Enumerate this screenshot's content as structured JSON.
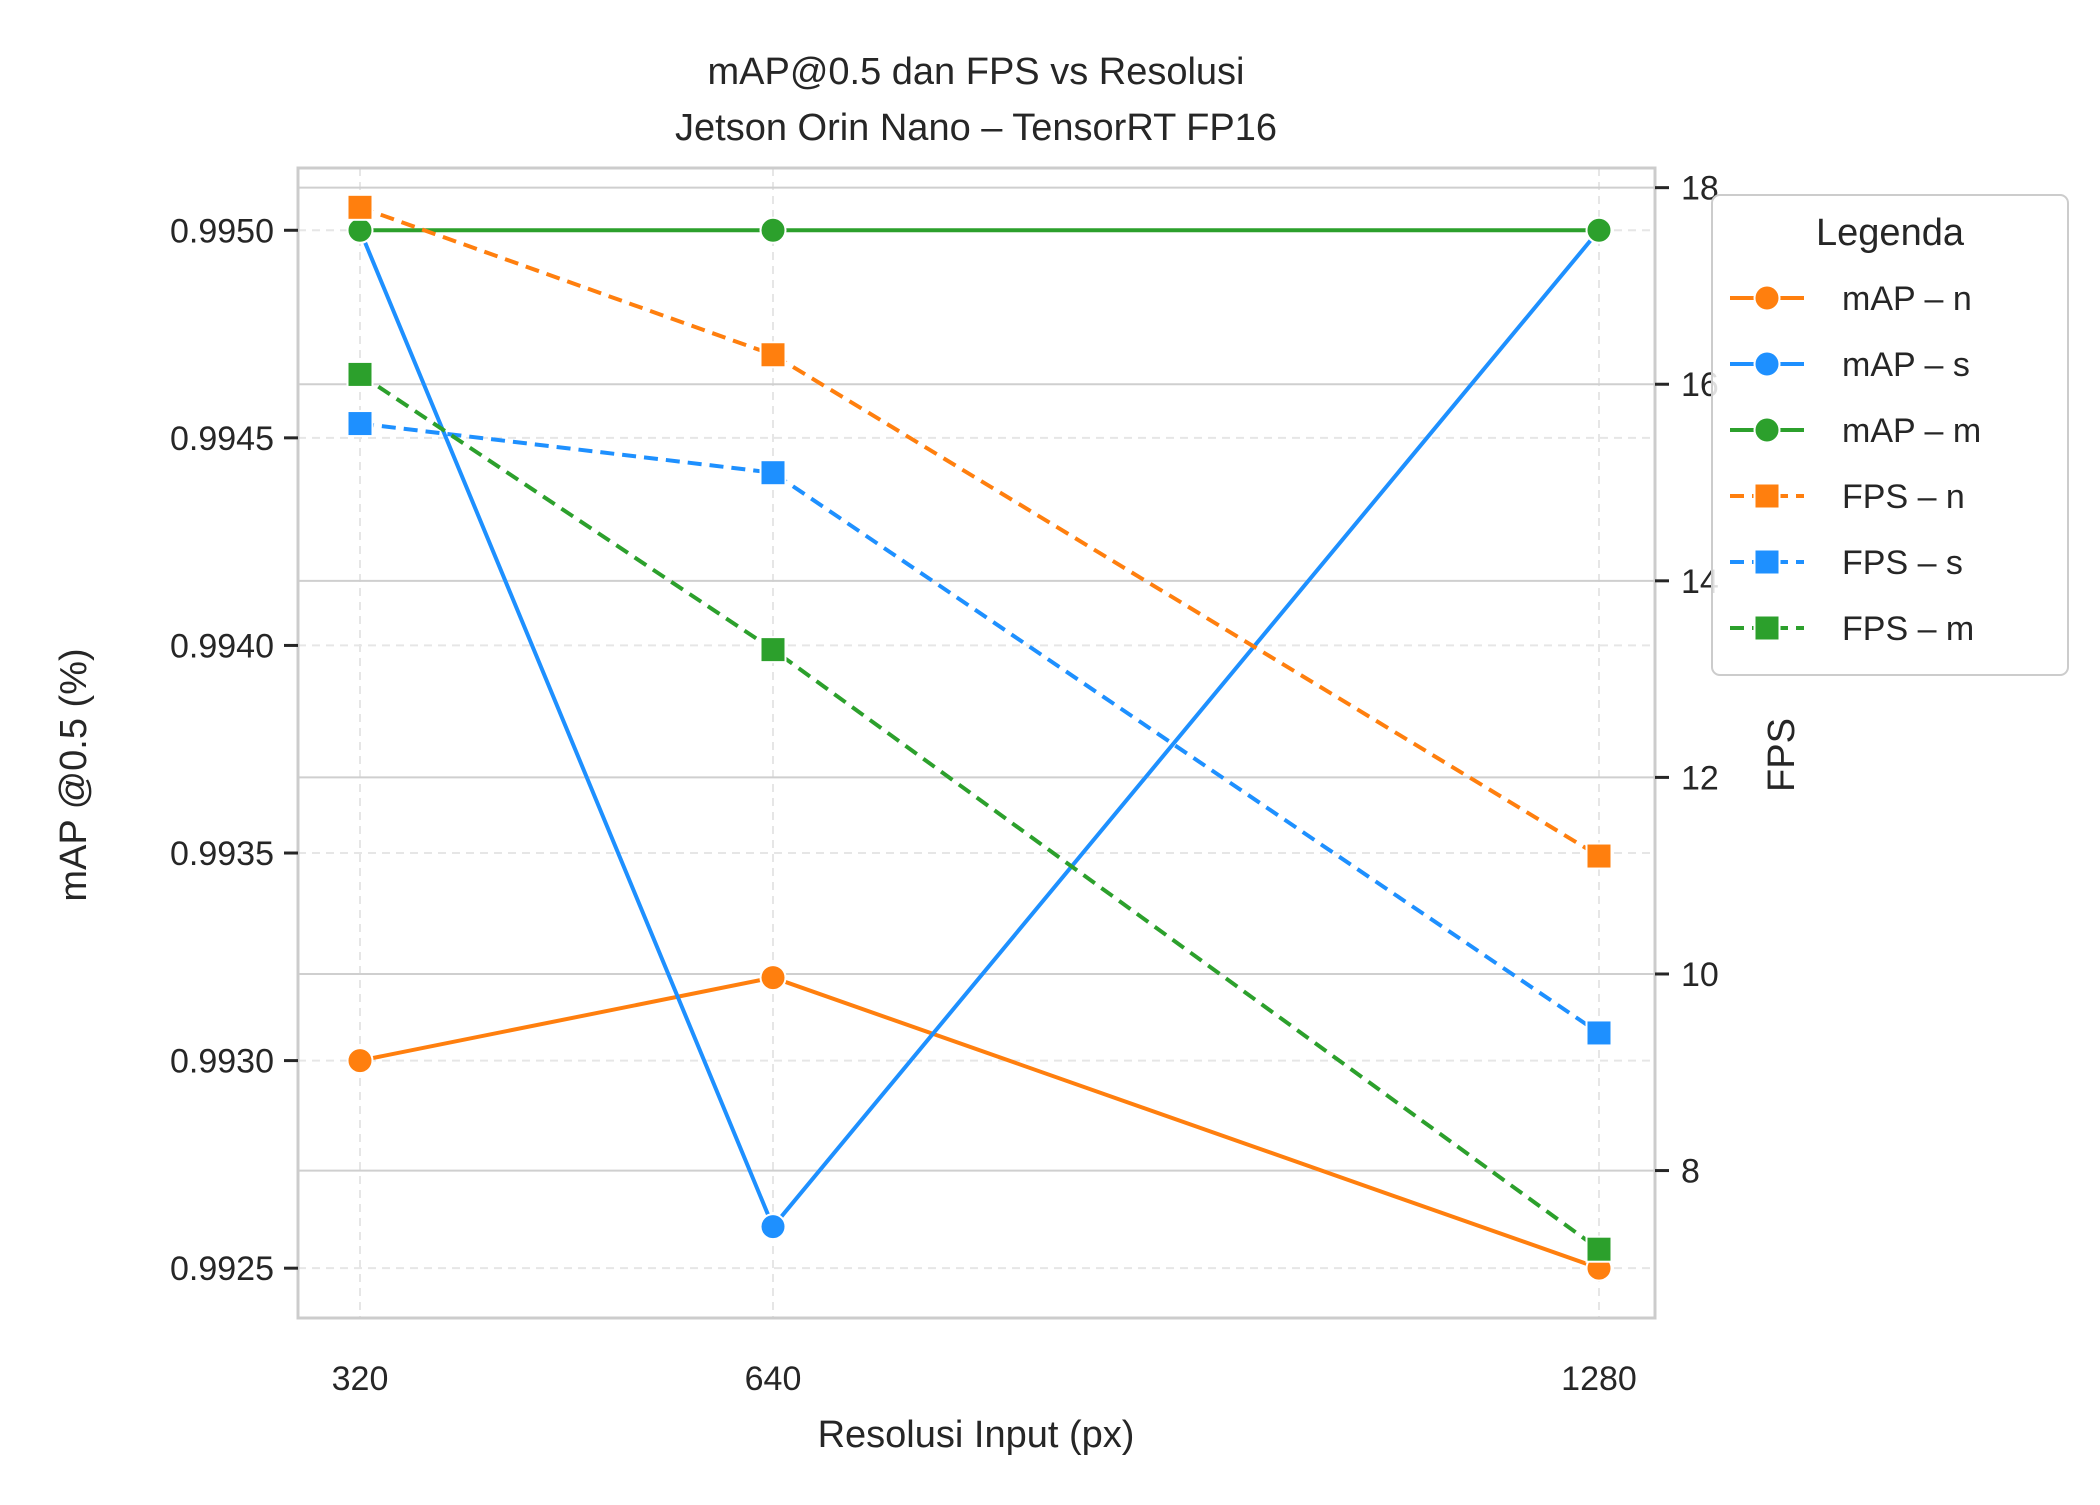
{
  "chart_data": {
    "type": "line",
    "title": "mAP@0.5 dan FPS vs Resolusi",
    "subtitle": "Jetson Orin Nano – TensorRT FP16",
    "xlabel": "Resolusi Input (px)",
    "ylabel_left": "mAP @0.5 (%)",
    "ylabel_right": "FPS",
    "x_ticks": [
      320,
      640,
      1280
    ],
    "x_tick_labels": [
      "320",
      "640",
      "1280"
    ],
    "x": [
      320,
      640,
      1280
    ],
    "ylim_left": [
      0.99238,
      0.99515
    ],
    "yticks_left": [
      0.9925,
      0.993,
      0.9935,
      0.994,
      0.9945,
      0.995
    ],
    "ytick_labels_left": [
      "0.9925",
      "0.9930",
      "0.9935",
      "0.9940",
      "0.9945",
      "0.9950"
    ],
    "ylim_right": [
      6.5,
      18.2
    ],
    "yticks_right": [
      8,
      10,
      12,
      14,
      16,
      18
    ],
    "ytick_labels_right": [
      "8",
      "10",
      "12",
      "14",
      "16",
      "18"
    ],
    "grid": true,
    "legend": {
      "title": "Legenda",
      "placement": "outside-top-right"
    },
    "series": [
      {
        "name": "mAP – n",
        "axis": "left",
        "style": "solid",
        "marker": "circle",
        "color": "#ff7f0e",
        "values": [
          0.993,
          0.9932,
          0.9925
        ]
      },
      {
        "name": "mAP – s",
        "axis": "left",
        "style": "solid",
        "marker": "circle",
        "color": "#1e90ff",
        "values": [
          0.995,
          0.9926,
          0.995
        ]
      },
      {
        "name": "mAP – m",
        "axis": "left",
        "style": "solid",
        "marker": "circle",
        "color": "#2ca02c",
        "values": [
          0.995,
          0.995,
          0.995
        ]
      },
      {
        "name": "FPS – n",
        "axis": "right",
        "style": "dashed",
        "marker": "square",
        "color": "#ff7f0e",
        "values": [
          17.8,
          16.3,
          11.2
        ]
      },
      {
        "name": "FPS – s",
        "axis": "right",
        "style": "dashed",
        "marker": "square",
        "color": "#1e90ff",
        "values": [
          15.6,
          15.1,
          9.4
        ]
      },
      {
        "name": "FPS – m",
        "axis": "right",
        "style": "dashed",
        "marker": "square",
        "color": "#2ca02c",
        "values": [
          16.1,
          13.3,
          7.2
        ]
      }
    ]
  }
}
